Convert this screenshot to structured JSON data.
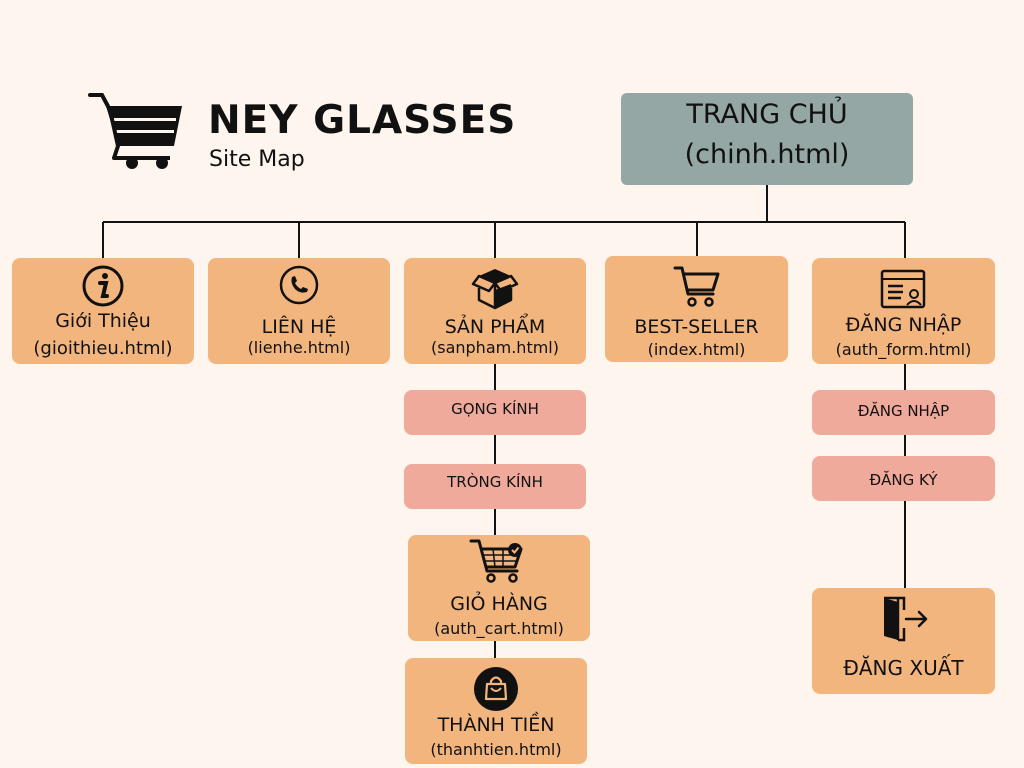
{
  "brand": {
    "title": "NEY GLASSES",
    "subtitle": "Site Map"
  },
  "root": {
    "title": "TRANG CHỦ",
    "file": "(chinh.html)"
  },
  "nodes": {
    "gioithieu": {
      "title": "Giới Thiệu",
      "file": "(gioithieu.html)",
      "icon": "info-icon"
    },
    "lienhe": {
      "title": "LIÊN HỆ",
      "file": "(lienhe.html)",
      "icon": "phone-icon"
    },
    "sanpham": {
      "title": "SẢN PHẨM",
      "file": "(sanpham.html)",
      "icon": "box-icon"
    },
    "bestseller": {
      "title": "BEST-SELLER",
      "file": "(index.html)",
      "icon": "cart-icon"
    },
    "dangnhap": {
      "title": "ĐĂNG NHẬP",
      "file": "(auth_form.html)",
      "icon": "login-form-icon"
    },
    "gongkinh": {
      "title": "GỌNG KÍNH"
    },
    "trongkinh": {
      "title": "TRÒNG KÍNH"
    },
    "giohang": {
      "title": "GIỎ HÀNG",
      "file": "(auth_cart.html)",
      "icon": "cart-check-icon"
    },
    "thanhtien": {
      "title": "THÀNH TIỀN",
      "file": "(thanhtien.html)",
      "icon": "shopping-bag-icon"
    },
    "dangnhap_sub": {
      "title": "ĐĂNG NHẬP"
    },
    "dangky": {
      "title": "ĐĂNG KÝ"
    },
    "dangxuat": {
      "title": "ĐĂNG XUẤT",
      "icon": "logout-icon"
    }
  },
  "colors": {
    "background": "#fdf5ee",
    "page_node": "#f3b57e",
    "sub_node": "#f0aa9c",
    "root_node": "#95a7a4",
    "line": "#111111"
  }
}
